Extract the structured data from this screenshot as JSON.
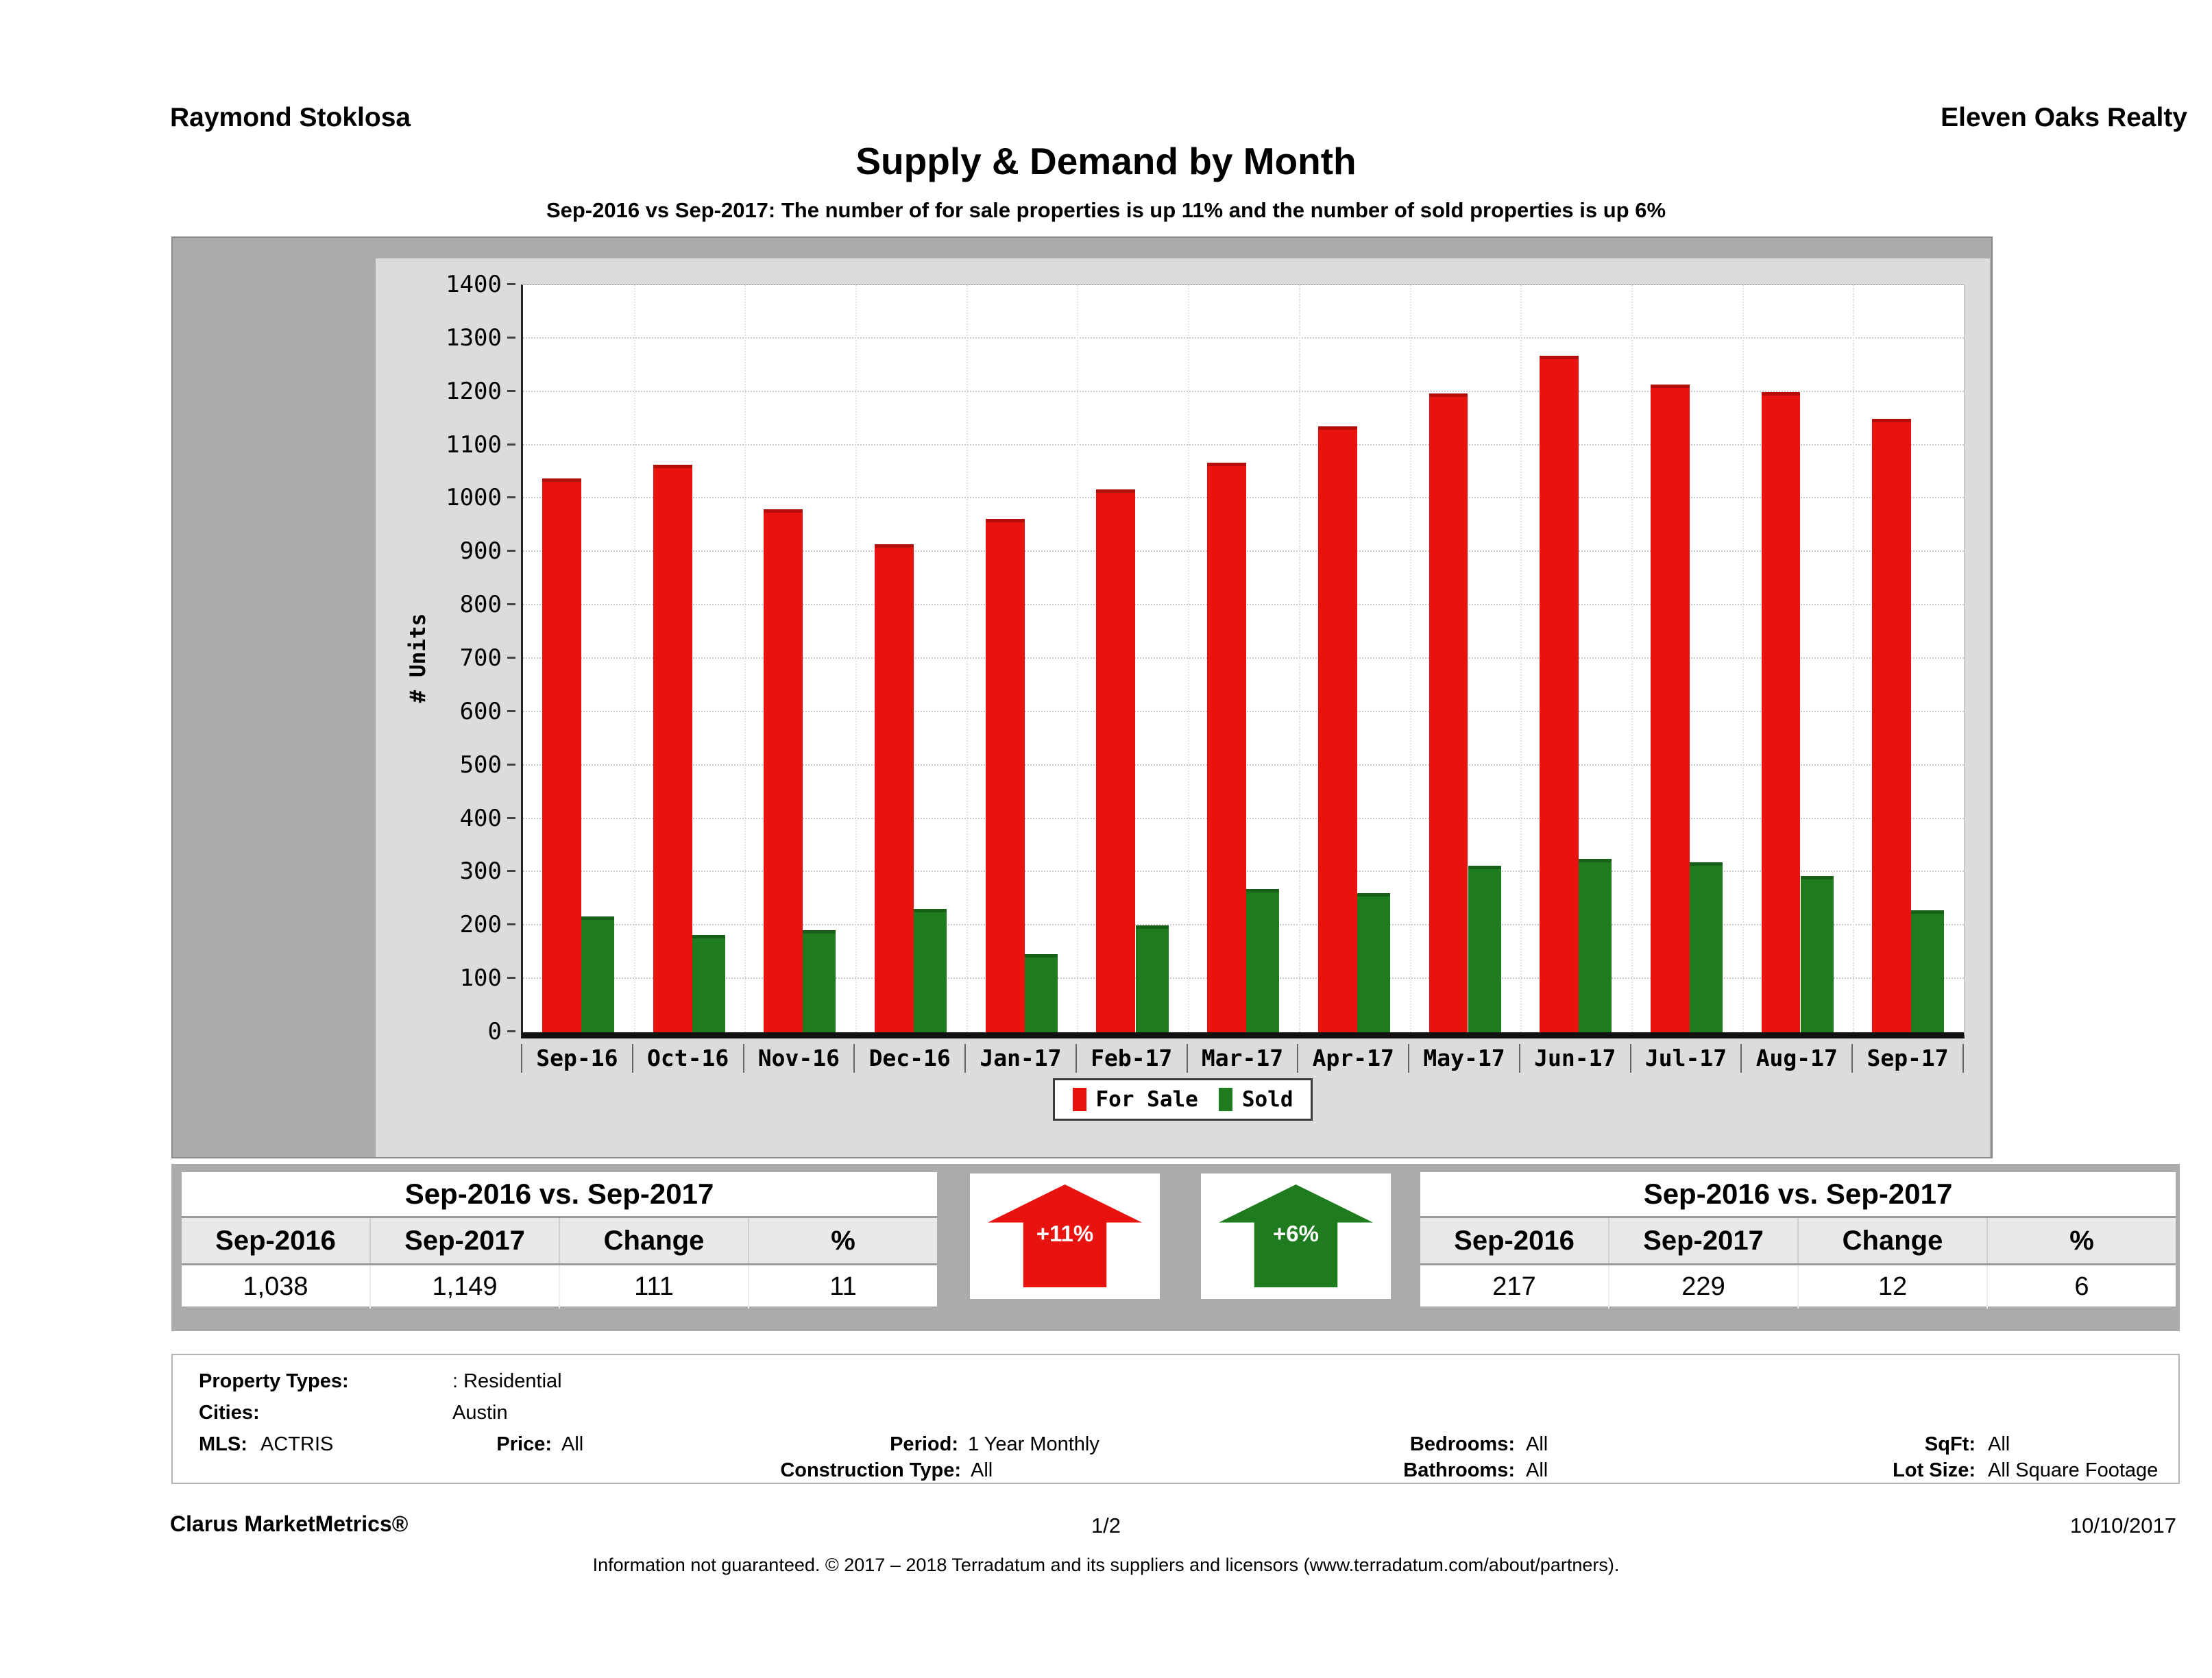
{
  "header": {
    "agent": "Raymond Stoklosa",
    "company": "Eleven Oaks Realty"
  },
  "title": "Supply & Demand by Month",
  "subtitle": "Sep-2016 vs Sep-2017: The number of for sale properties is up 11% and the number of sold properties is up 6%",
  "chart_data": {
    "type": "bar",
    "title": "Supply & Demand by Month",
    "categories": [
      "Sep-16",
      "Oct-16",
      "Nov-16",
      "Dec-16",
      "Jan-17",
      "Feb-17",
      "Mar-17",
      "Apr-17",
      "May-17",
      "Jun-17",
      "Jul-17",
      "Aug-17",
      "Sep-17"
    ],
    "series": [
      {
        "name": "For Sale",
        "color": "#e8120e",
        "values": [
          1038,
          1063,
          980,
          915,
          962,
          1017,
          1068,
          1136,
          1197,
          1268,
          1214,
          1200,
          1149
        ]
      },
      {
        "name": "Sold",
        "color": "#1e7c1e",
        "values": [
          217,
          183,
          192,
          231,
          147,
          201,
          268,
          261,
          312,
          325,
          318,
          293,
          229
        ]
      }
    ],
    "xlabel": "",
    "ylabel": "# Units",
    "ylim": [
      0,
      1400
    ],
    "ytick_step": 100,
    "grid": "dotted-horizontal",
    "legend_position": "bottom-center",
    "plot_bg": "#ffffff",
    "panel_bg": "#dcdcdc",
    "frame_bg": "#ababab"
  },
  "summary_tables": {
    "for_sale": {
      "title": "Sep-2016 vs. Sep-2017",
      "headers": [
        "Sep-2016",
        "Sep-2017",
        "Change",
        "%"
      ],
      "values": [
        "1,038",
        "1,149",
        "111",
        "11"
      ]
    },
    "sold": {
      "title": "Sep-2016 vs. Sep-2017",
      "headers": [
        "Sep-2016",
        "Sep-2017",
        "Change",
        "%"
      ],
      "values": [
        "217",
        "229",
        "12",
        "6"
      ]
    }
  },
  "arrows": {
    "for_sale": {
      "label": "+11%",
      "color": "#e8120e"
    },
    "sold": {
      "label": "+6%",
      "color": "#1e7c1e"
    }
  },
  "details": {
    "property_types_label": "Property Types:",
    "property_types": ": Residential",
    "cities_label": "Cities:",
    "cities": "Austin",
    "mls_label": "MLS:",
    "mls": "ACTRIS",
    "price_label": "Price:",
    "price": "All",
    "period_label": "Period:",
    "period": "1 Year Monthly",
    "bedrooms_label": "Bedrooms:",
    "bedrooms": "All",
    "sqft_label": "SqFt:",
    "sqft": "All",
    "construction_label": "Construction Type:",
    "construction": "All",
    "bathrooms_label": "Bathrooms:",
    "bathrooms": "All",
    "lot_size_label": "Lot Size:",
    "lot_size": "All Square Footage"
  },
  "footer": {
    "product": "Clarus MarketMetrics®",
    "page": "1/2",
    "date": "10/10/2017",
    "disclaimer": "Information not guaranteed. © 2017 – 2018 Terradatum and its suppliers and licensors (www.terradatum.com/about/partners)."
  }
}
